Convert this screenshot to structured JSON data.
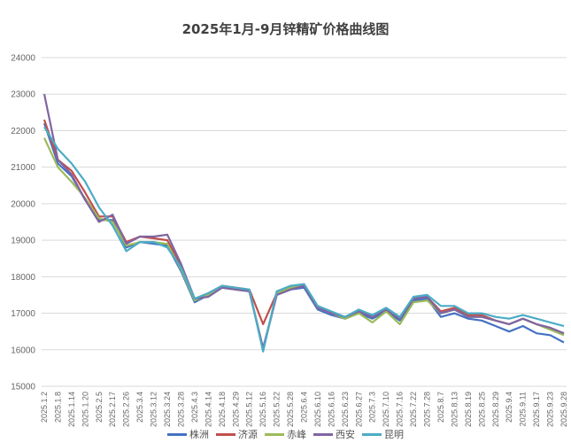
{
  "chart_data": {
    "type": "line",
    "title": "2025年1月-9月锌精矿价格曲线图",
    "xlabel": "",
    "ylabel": "",
    "ylim": [
      15000,
      24000
    ],
    "yticks": [
      15000,
      16000,
      17000,
      18000,
      19000,
      20000,
      21000,
      22000,
      23000,
      24000
    ],
    "grid": true,
    "legend_position": "bottom",
    "categories": [
      "2025.1.2",
      "2025.1.8",
      "2025.1.14",
      "2025.1.20",
      "2025.2.5",
      "2025.2.17",
      "2025.2.26",
      "2025.3.4",
      "2025.3.12",
      "2025.3.24",
      "2025.3.28",
      "2025.4.3",
      "2025.4.14",
      "2025.4.18",
      "2025.4.29",
      "2025.5.12",
      "2025.5.16",
      "2025.5.22",
      "2025.5.28",
      "2025.6.4",
      "2025.6.10",
      "2025.6.16",
      "2025.6.23",
      "2025.6.27",
      "2025.7.3",
      "2025.7.10",
      "2025.7.16",
      "2025.7.22",
      "2025.7.28",
      "2025.8.7",
      "2025.8.13",
      "2025.8.19",
      "2025.8.25",
      "2025.8.29",
      "2025.9.4",
      "2025.9.11",
      "2025.9.17",
      "2025.9.23",
      "2025.9.28"
    ],
    "series": [
      {
        "name": "株洲",
        "color": "#4472C4",
        "values": [
          22200,
          21100,
          20750,
          20100,
          19550,
          19550,
          18800,
          18950,
          18900,
          18850,
          18150,
          17300,
          17500,
          17700,
          17650,
          17600,
          16000,
          17500,
          17650,
          17700,
          17100,
          16950,
          16850,
          17000,
          16850,
          17050,
          16800,
          17350,
          17400,
          16900,
          17000,
          16850,
          16800,
          16650,
          16500,
          16650,
          16450,
          16400,
          16200
        ]
      },
      {
        "name": "济源",
        "color": "#C0504D",
        "values": [
          22300,
          21200,
          20900,
          20300,
          19650,
          19650,
          18950,
          19100,
          19050,
          19000,
          18300,
          17400,
          17550,
          17750,
          17700,
          17650,
          16700,
          17550,
          17700,
          17750,
          17150,
          17000,
          16900,
          17050,
          16900,
          17100,
          16850,
          17400,
          17450,
          17050,
          17150,
          16950,
          16950,
          16800,
          16700,
          16850,
          16700,
          16600,
          16450
        ]
      },
      {
        "name": "赤峰",
        "color": "#9BBB59",
        "values": [
          21800,
          21000,
          20600,
          20150,
          19600,
          19500,
          18850,
          18950,
          18950,
          18900,
          18200,
          17350,
          17500,
          17700,
          17650,
          17600,
          16000,
          17550,
          17700,
          17750,
          17150,
          17000,
          16850,
          17000,
          16750,
          17050,
          16700,
          17300,
          17350,
          17000,
          17100,
          16900,
          16900,
          16800,
          16700,
          16850,
          16700,
          16550,
          16400
        ]
      },
      {
        "name": "西安",
        "color": "#8064A2",
        "values": [
          23000,
          21200,
          20800,
          20100,
          19500,
          19700,
          18900,
          19100,
          19100,
          19150,
          18350,
          17400,
          17450,
          17700,
          17650,
          17600,
          16050,
          17500,
          17650,
          17750,
          17150,
          17000,
          16900,
          17050,
          16900,
          17100,
          16850,
          17400,
          17450,
          17000,
          17100,
          16900,
          16900,
          16800,
          16700,
          16850,
          16700,
          16600,
          16450
        ]
      },
      {
        "name": "昆明",
        "color": "#4BACC6",
        "values": [
          22100,
          21500,
          21100,
          20600,
          19900,
          19400,
          18700,
          18950,
          18950,
          18800,
          18250,
          17400,
          17550,
          17750,
          17700,
          17650,
          15950,
          17600,
          17750,
          17800,
          17200,
          17050,
          16900,
          17100,
          16950,
          17150,
          16900,
          17450,
          17500,
          17200,
          17200,
          17000,
          17000,
          16900,
          16850,
          16950,
          16850,
          16750,
          16650
        ]
      }
    ]
  }
}
